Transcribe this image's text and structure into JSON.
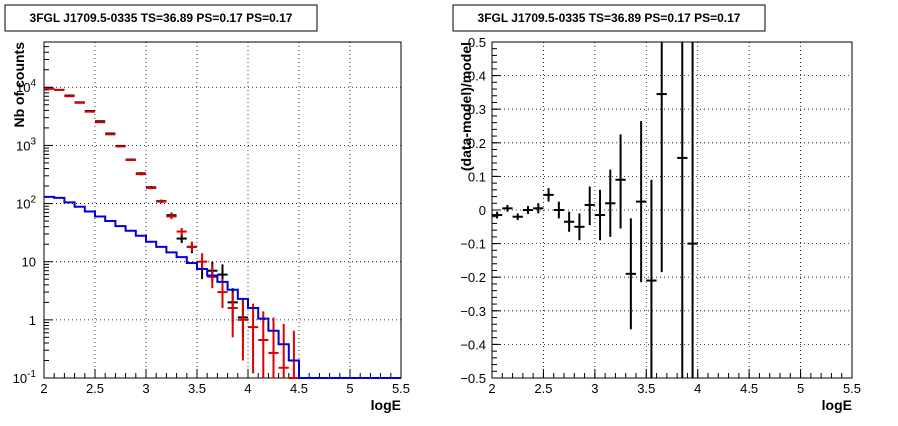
{
  "chart_data": [
    {
      "type": "scatter",
      "title": "3FGL J1709.5-0335 TS=36.89 PS=0.17 PS=0.17",
      "xlabel": "logE",
      "ylabel": "Nb of counts",
      "xlim": [
        2,
        5.5
      ],
      "ylim": [
        0.1,
        60000
      ],
      "yscale": "log",
      "grid": true,
      "x_ticks": [
        "2",
        "2.5",
        "3",
        "3.5",
        "4",
        "4.5",
        "5",
        "5.5"
      ],
      "y_ticks": [
        {
          "base": "10",
          "exp": "-1",
          "value": 0.1
        },
        {
          "base": "1",
          "exp": "",
          "value": 1
        },
        {
          "base": "10",
          "exp": "",
          "value": 10
        },
        {
          "base": "10",
          "exp": "2",
          "value": 100
        },
        {
          "base": "10",
          "exp": "3",
          "value": 1000
        },
        {
          "base": "10",
          "exp": "4",
          "value": 10000
        }
      ],
      "series": [
        {
          "style": "errorbar",
          "color": "#000000",
          "points": [
            {
              "x": 2.05,
              "y": 9500,
              "lo": 9300,
              "hi": 9700
            },
            {
              "x": 2.15,
              "y": 9000,
              "lo": 8800,
              "hi": 9200
            },
            {
              "x": 2.25,
              "y": 7200,
              "lo": 7000,
              "hi": 7400
            },
            {
              "x": 2.35,
              "y": 5500,
              "lo": 5350,
              "hi": 5650
            },
            {
              "x": 2.45,
              "y": 3900,
              "lo": 3800,
              "hi": 4000
            },
            {
              "x": 2.55,
              "y": 2600,
              "lo": 2520,
              "hi": 2680
            },
            {
              "x": 2.65,
              "y": 1600,
              "lo": 1550,
              "hi": 1650
            },
            {
              "x": 2.75,
              "y": 980,
              "lo": 950,
              "hi": 1010
            },
            {
              "x": 2.85,
              "y": 570,
              "lo": 550,
              "hi": 590
            },
            {
              "x": 2.95,
              "y": 330,
              "lo": 315,
              "hi": 345
            },
            {
              "x": 3.05,
              "y": 190,
              "lo": 180,
              "hi": 200
            },
            {
              "x": 3.15,
              "y": 110,
              "lo": 103,
              "hi": 117
            },
            {
              "x": 3.25,
              "y": 63,
              "lo": 56,
              "hi": 70
            },
            {
              "x": 3.35,
              "y": 25,
              "lo": 21,
              "hi": 30
            },
            {
              "x": 3.45,
              "y": 18,
              "lo": 14,
              "hi": 22
            },
            {
              "x": 3.55,
              "y": 7.5,
              "lo": 5,
              "hi": 10.5
            },
            {
              "x": 3.65,
              "y": 7,
              "lo": 4.5,
              "hi": 10
            },
            {
              "x": 3.75,
              "y": 6,
              "lo": 3.8,
              "hi": 9
            },
            {
              "x": 3.85,
              "y": 2,
              "lo": 0.9,
              "hi": 3.5
            },
            {
              "x": 3.95,
              "y": 1.1,
              "lo": 0.5,
              "hi": 2.3
            }
          ]
        },
        {
          "style": "errorbar",
          "color": "#dd0000",
          "points": [
            {
              "x": 2.05,
              "y": 9400,
              "lo": 9200,
              "hi": 9600
            },
            {
              "x": 2.15,
              "y": 9000,
              "lo": 8800,
              "hi": 9200
            },
            {
              "x": 2.25,
              "y": 7000,
              "lo": 6800,
              "hi": 7200
            },
            {
              "x": 2.35,
              "y": 5400,
              "lo": 5250,
              "hi": 5550
            },
            {
              "x": 2.45,
              "y": 3800,
              "lo": 3700,
              "hi": 3900
            },
            {
              "x": 2.55,
              "y": 2500,
              "lo": 2430,
              "hi": 2570
            },
            {
              "x": 2.65,
              "y": 1550,
              "lo": 1500,
              "hi": 1600
            },
            {
              "x": 2.75,
              "y": 960,
              "lo": 930,
              "hi": 990
            },
            {
              "x": 2.85,
              "y": 560,
              "lo": 540,
              "hi": 580
            },
            {
              "x": 2.95,
              "y": 320,
              "lo": 305,
              "hi": 335
            },
            {
              "x": 3.05,
              "y": 185,
              "lo": 176,
              "hi": 194
            },
            {
              "x": 3.15,
              "y": 108,
              "lo": 101,
              "hi": 115
            },
            {
              "x": 3.25,
              "y": 60,
              "lo": 54,
              "hi": 67
            },
            {
              "x": 3.35,
              "y": 33,
              "lo": 28,
              "hi": 38
            },
            {
              "x": 3.45,
              "y": 18,
              "lo": 15,
              "hi": 22
            },
            {
              "x": 3.55,
              "y": 10,
              "lo": 7,
              "hi": 14
            },
            {
              "x": 3.65,
              "y": 5.5,
              "lo": 3.5,
              "hi": 9
            },
            {
              "x": 3.75,
              "y": 3,
              "lo": 1.6,
              "hi": 5
            },
            {
              "x": 3.85,
              "y": 1.6,
              "lo": 0.5,
              "hi": 3
            },
            {
              "x": 3.95,
              "y": 1.0,
              "lo": 0.2,
              "hi": 2.2
            },
            {
              "x": 4.05,
              "y": 0.75,
              "lo": 0.12,
              "hi": 1.9
            },
            {
              "x": 4.15,
              "y": 0.45,
              "lo": 0.1,
              "hi": 1.4
            },
            {
              "x": 4.25,
              "y": 0.27,
              "lo": 0.1,
              "hi": 1.1
            },
            {
              "x": 4.35,
              "y": 0.15,
              "lo": 0.1,
              "hi": 0.85
            },
            {
              "x": 4.45,
              "y": 0.1,
              "lo": 0.1,
              "hi": 0.65
            }
          ]
        },
        {
          "style": "step",
          "color": "#0000dd",
          "edges": [
            2.0,
            2.1,
            2.2,
            2.3,
            2.4,
            2.5,
            2.6,
            2.7,
            2.8,
            2.9,
            3.0,
            3.1,
            3.2,
            3.3,
            3.4,
            3.5,
            3.6,
            3.7,
            3.8,
            3.9,
            4.0,
            4.1,
            4.2,
            4.3,
            4.4,
            4.5,
            4.6,
            4.7,
            4.8,
            4.9,
            5.0,
            5.1,
            5.2,
            5.3,
            5.4,
            5.5
          ],
          "values": [
            130,
            125,
            105,
            88,
            73,
            60,
            50,
            41,
            34,
            28,
            22,
            18,
            14.5,
            12,
            9.5,
            7.5,
            5.8,
            4.5,
            3.3,
            2.3,
            1.6,
            1.05,
            0.65,
            0.38,
            0.2,
            0.1,
            0.1,
            0.1,
            0.1,
            0.1,
            0.1,
            0.1,
            0.1,
            0.1,
            0.1
          ]
        }
      ]
    },
    {
      "type": "scatter",
      "title": "3FGL J1709.5-0335 TS=36.89 PS=0.17 PS=0.17",
      "xlabel": "logE",
      "ylabel": "(data-model)/model",
      "xlim": [
        2,
        5.5
      ],
      "ylim": [
        -0.5,
        0.5
      ],
      "grid": true,
      "x_ticks": [
        "2",
        "2.5",
        "3",
        "3.5",
        "4",
        "4.5",
        "5",
        "5.5"
      ],
      "y_ticks": [
        "−0.5",
        "−0.4",
        "−0.3",
        "−0.2",
        "−0.1",
        "0",
        "0.1",
        "0.2",
        "0.3",
        "0.4",
        "0.5"
      ],
      "series": [
        {
          "style": "errorbar",
          "color": "#000000",
          "points": [
            {
              "x": 2.05,
              "y": -0.015,
              "lo": -0.025,
              "hi": -0.005
            },
            {
              "x": 2.15,
              "y": 0.005,
              "lo": -0.005,
              "hi": 0.015
            },
            {
              "x": 2.25,
              "y": -0.02,
              "lo": -0.03,
              "hi": -0.01
            },
            {
              "x": 2.35,
              "y": 0.0,
              "lo": -0.012,
              "hi": 0.012
            },
            {
              "x": 2.45,
              "y": 0.005,
              "lo": -0.01,
              "hi": 0.02
            },
            {
              "x": 2.55,
              "y": 0.045,
              "lo": 0.025,
              "hi": 0.065
            },
            {
              "x": 2.65,
              "y": 0.0,
              "lo": -0.025,
              "hi": 0.025
            },
            {
              "x": 2.75,
              "y": -0.035,
              "lo": -0.065,
              "hi": -0.005
            },
            {
              "x": 2.85,
              "y": -0.05,
              "lo": -0.09,
              "hi": -0.01
            },
            {
              "x": 2.95,
              "y": 0.015,
              "lo": -0.045,
              "hi": 0.07
            },
            {
              "x": 3.05,
              "y": -0.015,
              "lo": -0.09,
              "hi": 0.06
            },
            {
              "x": 3.15,
              "y": 0.02,
              "lo": -0.08,
              "hi": 0.12
            },
            {
              "x": 3.25,
              "y": 0.09,
              "lo": -0.055,
              "hi": 0.225
            },
            {
              "x": 3.35,
              "y": -0.19,
              "lo": -0.355,
              "hi": -0.025
            },
            {
              "x": 3.45,
              "y": 0.025,
              "lo": -0.215,
              "hi": 0.265
            },
            {
              "x": 3.55,
              "y": -0.21,
              "lo": -0.5,
              "hi": 0.09
            },
            {
              "x": 3.65,
              "y": 0.345,
              "lo": -0.185,
              "hi": 0.5
            },
            {
              "x": 3.85,
              "y": 0.155,
              "lo": -0.5,
              "hi": 0.5
            },
            {
              "x": 3.95,
              "y": -0.1,
              "lo": -0.5,
              "hi": 0.5
            }
          ]
        }
      ]
    }
  ]
}
